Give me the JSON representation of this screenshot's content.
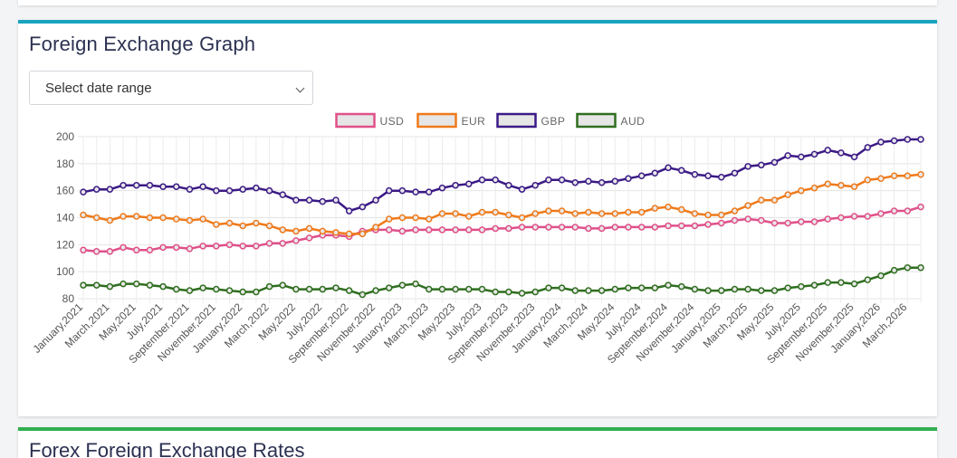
{
  "section_title": "Foreign Exchange Graph",
  "date_select": {
    "label": "Select date range"
  },
  "next_section_title": "Forex Foreign Exchange Rates",
  "chart_data": {
    "type": "line",
    "x": [
      "January,2021",
      "February,2021",
      "March,2021",
      "April,2021",
      "May,2021",
      "June,2021",
      "July,2021",
      "August,2021",
      "September,2021",
      "October,2021",
      "November,2021",
      "December,2021",
      "January,2022",
      "February,2022",
      "March,2022",
      "April,2022",
      "May,2022",
      "June,2022",
      "July,2022",
      "August,2022",
      "September,2022",
      "October,2022",
      "November,2022",
      "December,2022",
      "January,2023",
      "February,2023",
      "March,2023",
      "April,2023",
      "May,2023",
      "June,2023",
      "July,2023",
      "August,2023",
      "September,2023",
      "October,2023",
      "November,2023",
      "December,2023",
      "January,2024",
      "February,2024",
      "March,2024",
      "April,2024",
      "May,2024",
      "June,2024",
      "July,2024",
      "August,2024",
      "September,2024",
      "October,2024",
      "November,2024",
      "December,2024",
      "January,2025",
      "February,2025",
      "March,2025",
      "April,2025",
      "May,2025",
      "June,2025",
      "July,2025",
      "August,2025",
      "September,2025",
      "October,2025",
      "November,2025",
      "December,2025",
      "January,2026",
      "February,2026",
      "March,2026",
      "April,2026"
    ],
    "tick_labels": [
      "January,2021",
      "March,2021",
      "May,2021",
      "July,2021",
      "September,2021",
      "November,2021",
      "January,2022",
      "March,2022",
      "May,2022",
      "July,2022",
      "September,2022",
      "November,2022",
      "January,2023",
      "March,2023",
      "May,2023",
      "July,2023",
      "September,2023",
      "November,2023",
      "January,2024",
      "March,2024",
      "May,2024",
      "July,2024",
      "September,2024",
      "November,2024",
      "January,2025",
      "March,2025",
      "May,2025",
      "July,2025",
      "September,2025",
      "November,2025",
      "January,2026",
      "March,2026"
    ],
    "ylim": [
      80,
      200
    ],
    "yticks": [
      80,
      100,
      120,
      140,
      160,
      180,
      200
    ],
    "grid": true,
    "legend_position": "top",
    "series": [
      {
        "name": "USD",
        "color": "#e0508a",
        "values": [
          116,
          115,
          115,
          118,
          116,
          116,
          118,
          118,
          117,
          119,
          119,
          120,
          119,
          119,
          121,
          121,
          123,
          125,
          127,
          127,
          126,
          130,
          131,
          131,
          130,
          131,
          131,
          131,
          131,
          131,
          131,
          132,
          132,
          133,
          133,
          133,
          133,
          133,
          132,
          132,
          133,
          133,
          133,
          133,
          134,
          134,
          134,
          135,
          136,
          138,
          139,
          138,
          136,
          136,
          137,
          137,
          139,
          140,
          141,
          141,
          143,
          145,
          145,
          148
        ]
      },
      {
        "name": "EUR",
        "color": "#ef7a1a",
        "values": [
          142,
          140,
          138,
          141,
          141,
          140,
          140,
          139,
          138,
          139,
          135,
          136,
          134,
          136,
          134,
          131,
          130,
          132,
          130,
          129,
          128,
          128,
          133,
          139,
          140,
          140,
          139,
          143,
          143,
          141,
          144,
          144,
          142,
          140,
          143,
          145,
          145,
          143,
          144,
          143,
          143,
          144,
          144,
          147,
          148,
          146,
          143,
          142,
          142,
          145,
          149,
          153,
          153,
          157,
          160,
          162,
          165,
          164,
          163,
          168,
          169,
          171,
          171,
          172
        ]
      },
      {
        "name": "GBP",
        "color": "#3b1a86",
        "values": [
          159,
          161,
          161,
          164,
          164,
          164,
          163,
          163,
          161,
          163,
          160,
          160,
          161,
          162,
          160,
          157,
          153,
          153,
          152,
          153,
          145,
          148,
          153,
          160,
          160,
          159,
          159,
          162,
          164,
          165,
          168,
          168,
          164,
          161,
          164,
          168,
          168,
          166,
          167,
          166,
          167,
          169,
          171,
          173,
          177,
          175,
          172,
          171,
          170,
          173,
          178,
          179,
          181,
          186,
          185,
          187,
          190,
          188,
          185,
          192,
          196,
          197,
          198,
          198
        ]
      },
      {
        "name": "AUD",
        "color": "#2f6e1f",
        "values": [
          90,
          90,
          89,
          91,
          91,
          90,
          89,
          87,
          86,
          88,
          87,
          86,
          85,
          85,
          89,
          90,
          87,
          87,
          87,
          88,
          86,
          83,
          86,
          88,
          90,
          91,
          87,
          87,
          87,
          87,
          87,
          85,
          85,
          84,
          85,
          88,
          88,
          86,
          86,
          86,
          87,
          88,
          88,
          88,
          90,
          89,
          87,
          86,
          86,
          87,
          87,
          86,
          86,
          88,
          89,
          90,
          92,
          92,
          91,
          94,
          97,
          101,
          103,
          103
        ]
      }
    ]
  }
}
